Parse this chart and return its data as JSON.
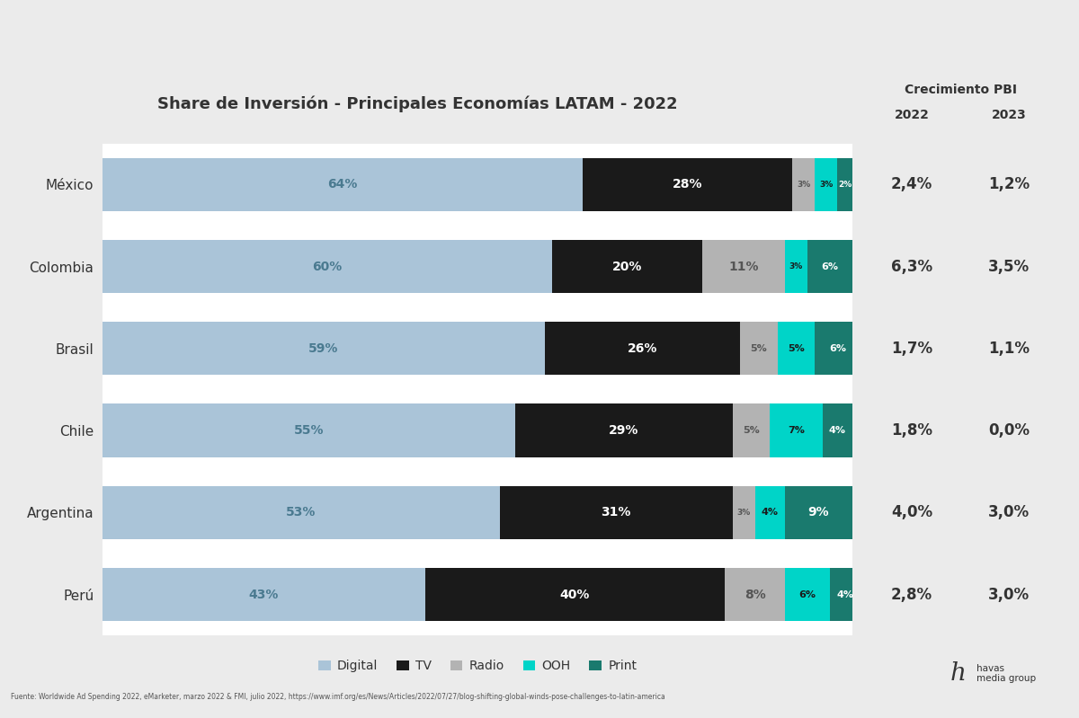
{
  "title": "Share de Inversión - Principales Economías LATAM - 2022",
  "countries": [
    "México",
    "Colombia",
    "Brasil",
    "Chile",
    "Argentina",
    "Perú"
  ],
  "segments": {
    "Digital": [
      64,
      60,
      59,
      55,
      53,
      43
    ],
    "TV": [
      28,
      20,
      26,
      29,
      31,
      40
    ],
    "Radio": [
      3,
      11,
      5,
      5,
      3,
      8
    ],
    "OOH": [
      3,
      3,
      5,
      7,
      4,
      6
    ],
    "Print": [
      2,
      6,
      6,
      4,
      9,
      4
    ]
  },
  "segment_labels": {
    "Digital": [
      "64%",
      "60%",
      "59%",
      "55%",
      "53%",
      "43%"
    ],
    "TV": [
      "28%",
      "20%",
      "26%",
      "29%",
      "31%",
      "40%"
    ],
    "Radio": [
      "3%",
      "11%",
      "5%",
      "5%",
      "3%",
      "8%"
    ],
    "OOH": [
      "3%",
      "3%",
      "5%",
      "7%",
      "4%",
      "6%"
    ],
    "Print": [
      "2%",
      "6%",
      "6%",
      "4%",
      "9%",
      "4%"
    ]
  },
  "colors": {
    "Digital": "#aac4d8",
    "TV": "#1a1a1a",
    "Radio": "#b3b3b3",
    "OOH": "#00d4c8",
    "Print": "#1a7a6e"
  },
  "text_colors": {
    "Digital": "#4a7a90",
    "TV": "#ffffff",
    "Radio": "#555555",
    "OOH": "#1a1a1a",
    "Print": "#ffffff"
  },
  "pbi_2022": [
    "2,4%",
    "6,3%",
    "1,7%",
    "1,8%",
    "4,0%",
    "2,8%"
  ],
  "pbi_2023": [
    "1,2%",
    "3,5%",
    "1,1%",
    "0,0%",
    "3,0%",
    "3,0%"
  ],
  "pbi_header": "Crecimiento PBI",
  "col_2022": "2022",
  "col_2023": "2023",
  "legend_items": [
    "Digital",
    "TV",
    "Radio",
    "OOH",
    "Print"
  ],
  "source_text": "Fuente: Worldwide Ad Spending 2022, eMarketer, marzo 2022 & FMI, julio 2022, https://www.imf.org/es/News/Articles/2022/07/27/blog-shifting-global-winds-pose-challenges-to-latin-america",
  "bg_color": "#ebebeb",
  "chart_bg": "#ffffff",
  "bar_height": 0.65
}
